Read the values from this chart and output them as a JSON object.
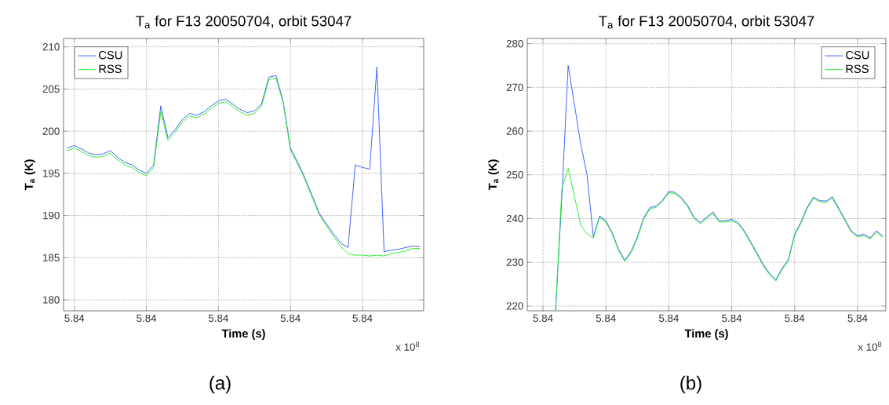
{
  "chart_data": [
    {
      "type": "line",
      "title": "T$_{a}$ for F13 20050704, orbit 53047",
      "xlabel": "Time (s)",
      "ylabel": "T$_{a}$ (K)",
      "categories": [
        null,
        "5.84",
        null,
        null,
        null,
        null,
        null,
        null,
        null,
        null,
        null,
        "5.84",
        null,
        null,
        null,
        null,
        null,
        null,
        null,
        null,
        null,
        "5.84",
        null,
        null,
        null,
        null,
        null,
        null,
        null,
        null,
        null,
        "5.84",
        null,
        null,
        null,
        null,
        null,
        null,
        null,
        null,
        null,
        "5.84",
        null,
        null,
        null,
        null,
        null,
        null,
        null,
        null
      ],
      "ylim": [
        178.7,
        211
      ],
      "yticks": [
        180,
        185,
        190,
        195,
        200,
        205,
        210
      ],
      "grid": true,
      "legend": "top left",
      "line_style": "solid",
      "annotations": [
        "x 10$^{8}$",
        "(a)"
      ],
      "series": [
        {
          "name": "CSU",
          "color": "#2f5cff",
          "values": [
            198.0,
            198.3,
            197.9,
            197.4,
            197.2,
            197.3,
            197.7,
            196.9,
            196.3,
            196.0,
            195.4,
            195.0,
            196.0,
            203.0,
            199.2,
            200.2,
            201.4,
            202.1,
            201.9,
            202.3,
            203.0,
            203.6,
            203.8,
            203.2,
            202.6,
            202.2,
            202.4,
            203.3,
            206.4,
            206.6,
            203.5,
            198.0,
            196.3,
            194.5,
            192.4,
            190.3,
            189.0,
            187.8,
            186.7,
            186.2,
            196.0,
            195.7,
            195.5,
            207.6,
            185.7,
            185.9,
            186.0,
            186.2,
            186.4,
            186.3
          ]
        },
        {
          "name": "RSS",
          "color": "#22ee22",
          "values": [
            197.7,
            198.0,
            197.6,
            197.1,
            196.9,
            197.0,
            197.4,
            196.6,
            196.0,
            195.7,
            195.1,
            194.7,
            195.7,
            202.3,
            198.9,
            199.9,
            201.1,
            201.8,
            201.6,
            202.0,
            202.7,
            203.3,
            203.5,
            202.9,
            202.3,
            201.9,
            202.1,
            203.0,
            206.1,
            206.3,
            203.3,
            197.8,
            196.1,
            194.3,
            192.2,
            190.1,
            188.8,
            187.5,
            186.3,
            185.5,
            185.3,
            185.3,
            185.2,
            185.3,
            185.2,
            185.5,
            185.6,
            185.8,
            186.1,
            186.1
          ]
        }
      ]
    },
    {
      "type": "line",
      "title": "T$_{a}$ for F13 20050704, orbit 53047",
      "xlabel": "Time (s)",
      "ylabel": "T$_{a}$ (K)",
      "categories": [
        null,
        null,
        "5.84",
        null,
        null,
        null,
        null,
        null,
        null,
        null,
        null,
        null,
        "5.84",
        null,
        null,
        null,
        null,
        null,
        null,
        null,
        null,
        null,
        "5.84",
        null,
        null,
        null,
        null,
        null,
        null,
        null,
        null,
        null,
        "5.84",
        null,
        null,
        null,
        null,
        null,
        null,
        null,
        null,
        null,
        "5.84",
        null,
        null,
        null,
        null,
        null,
        null,
        null,
        null,
        null,
        "5.84",
        null,
        null,
        null,
        null
      ],
      "ylim": [
        218.9,
        281.2
      ],
      "yticks": [
        220,
        230,
        240,
        250,
        260,
        270,
        280
      ],
      "grid": true,
      "legend": "top right",
      "line_style": "solid",
      "annotations": [
        "x 10$^{8}$",
        "(b)"
      ],
      "series": [
        {
          "name": "CSU",
          "color": "#2f5cff",
          "values": [
            null,
            null,
            null,
            null,
            219.0,
            245.0,
            275.0,
            266.0,
            257.0,
            250.0,
            235.8,
            240.6,
            239.5,
            236.8,
            233.0,
            230.5,
            232.5,
            235.8,
            240.2,
            242.5,
            242.9,
            244.2,
            246.2,
            246.0,
            244.8,
            243.0,
            240.3,
            239.1,
            240.3,
            241.5,
            239.5,
            239.5,
            239.8,
            239.1,
            237.2,
            234.7,
            232.2,
            229.5,
            227.5,
            226.0,
            228.6,
            230.6,
            236.4,
            239.2,
            242.6,
            244.9,
            244.1,
            244.0,
            245.0,
            242.4,
            239.8,
            237.2,
            236.1,
            236.4,
            235.6,
            237.2,
            236.0
          ]
        },
        {
          "name": "RSS",
          "color": "#22ee22",
          "values": [
            null,
            null,
            null,
            null,
            219.0,
            247.0,
            251.5,
            245.0,
            238.5,
            236.5,
            235.5,
            240.3,
            239.2,
            236.5,
            232.7,
            230.2,
            232.2,
            235.5,
            239.9,
            242.2,
            242.6,
            243.9,
            245.9,
            245.7,
            244.5,
            242.7,
            240.0,
            238.8,
            240.0,
            241.2,
            239.2,
            239.2,
            239.5,
            238.8,
            236.9,
            234.4,
            231.9,
            229.2,
            227.2,
            225.7,
            228.3,
            230.3,
            236.1,
            238.9,
            242.3,
            244.6,
            243.8,
            243.7,
            244.7,
            242.1,
            239.5,
            236.9,
            235.8,
            236.1,
            235.3,
            236.9,
            235.7
          ]
        }
      ]
    }
  ]
}
